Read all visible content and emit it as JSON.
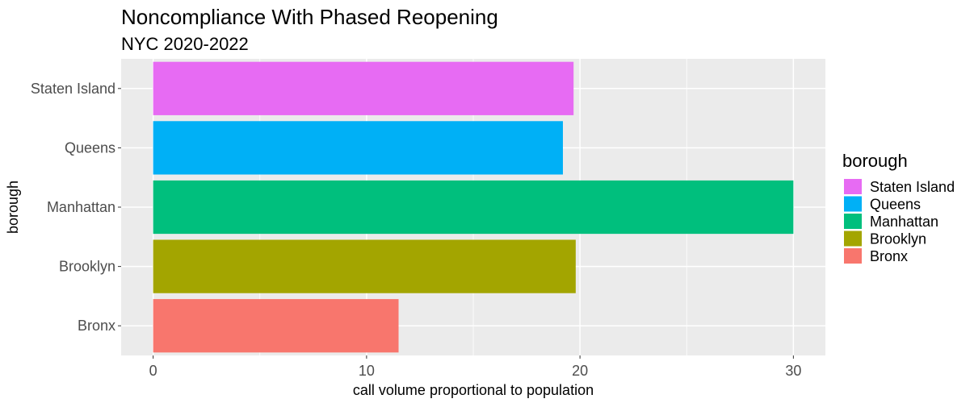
{
  "chart_data": {
    "type": "bar",
    "orientation": "horizontal",
    "title": "Noncompliance With Phased Reopening",
    "subtitle": "NYC 2020-2022",
    "xlabel": "call volume proportional to population",
    "ylabel": "borough",
    "categories": [
      "Staten Island",
      "Queens",
      "Manhattan",
      "Brooklyn",
      "Bronx"
    ],
    "values": [
      19.7,
      19.2,
      30.0,
      19.8,
      11.5
    ],
    "colors": [
      "#E76BF3",
      "#00B0F6",
      "#00BF7D",
      "#A3A500",
      "#F8766D"
    ],
    "xlim": [
      -1.5,
      31.5
    ],
    "xticks": [
      0,
      10,
      20,
      30
    ],
    "grid": true,
    "panel_background": "#EBEBEB",
    "legend": {
      "title": "borough",
      "placement": "right",
      "entries": [
        "Staten Island",
        "Queens",
        "Manhattan",
        "Brooklyn",
        "Bronx"
      ]
    }
  }
}
